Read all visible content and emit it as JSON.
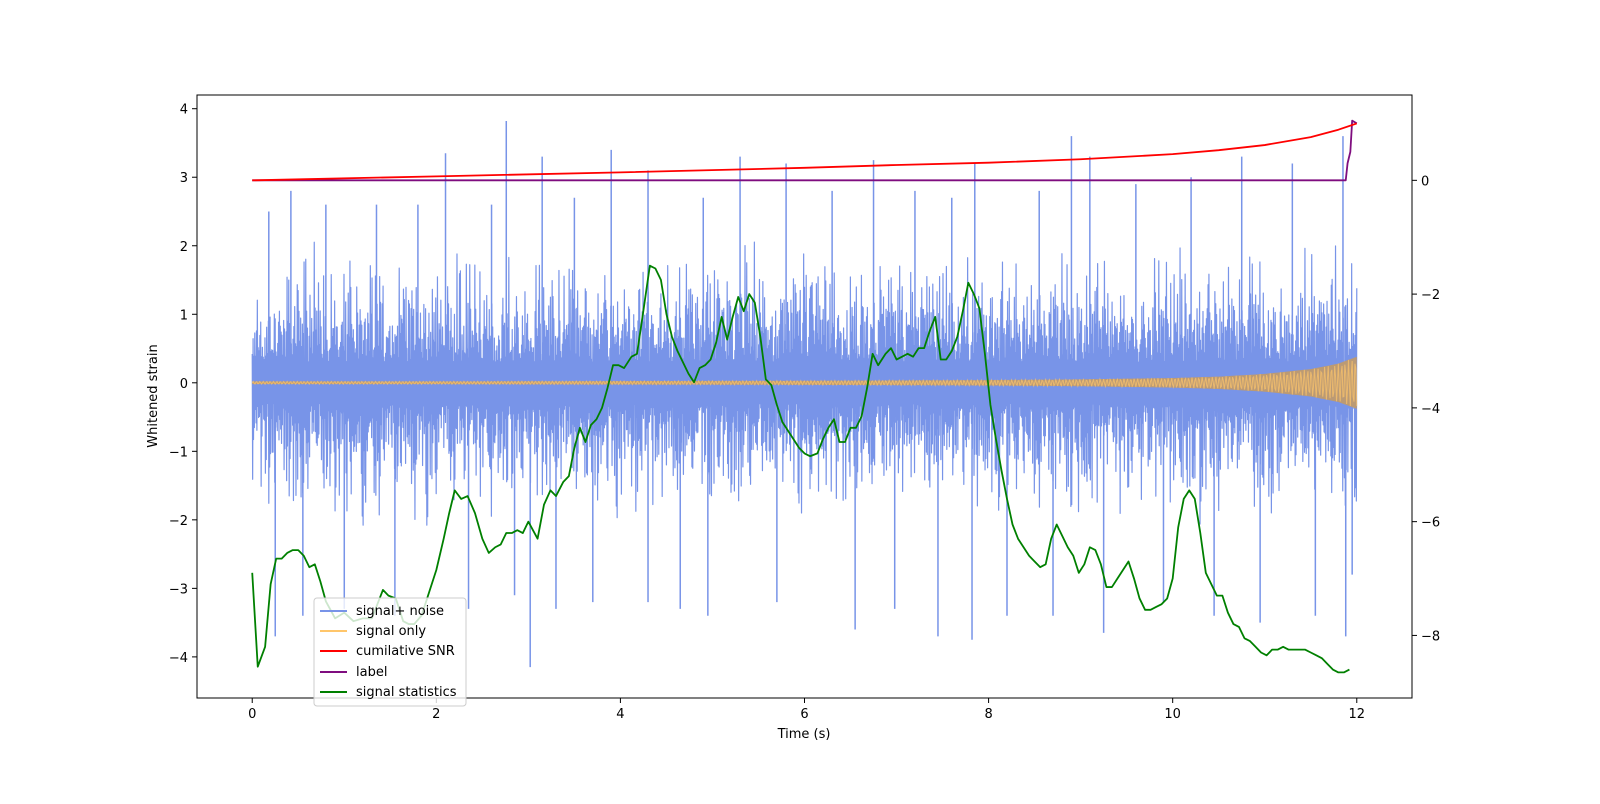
{
  "colors": {
    "signal_noise": "#7894e8",
    "signal_only": "#ffc66b",
    "signal_fill": "#bb9a74",
    "cumulative_snr": "#ff0000",
    "label": "#7f0d7f",
    "signal_statistics": "#008000"
  },
  "chart_data": {
    "type": "line",
    "title": "",
    "xlabel": "Time (s)",
    "ylabel": "Whitened strain",
    "y2label": "",
    "xlim": [
      -0.6,
      12.6
    ],
    "ylim": [
      -4.6,
      4.2
    ],
    "y2lim": [
      -9.1,
      1.5
    ],
    "xticks": [
      0,
      2,
      4,
      6,
      8,
      10,
      12
    ],
    "xtick_labels": [
      "0",
      "2",
      "4",
      "6",
      "8",
      "10",
      "12"
    ],
    "yticks": [
      4,
      3,
      2,
      1,
      0,
      -1,
      -2,
      -3,
      -4
    ],
    "ytick_labels": [
      "4",
      "3",
      "2",
      "1",
      "0",
      "−1",
      "−2",
      "−3",
      "−4"
    ],
    "y2ticks": [
      0,
      -2,
      -4,
      -6,
      -8
    ],
    "y2tick_labels": [
      "0",
      "−2",
      "−4",
      "−6",
      "−8"
    ],
    "legend": {
      "placement": "lower-left",
      "entries": [
        "signal+ noise",
        "signal only",
        "cumilative SNR",
        "label",
        "signal statistics"
      ]
    },
    "series": [
      {
        "name": "signal+ noise",
        "axis": "left",
        "style": "noise",
        "x_range": [
          0,
          12
        ],
        "band": [
          -2.0,
          2.0
        ],
        "spikes": [
          {
            "x": 0.18,
            "y": 2.5
          },
          {
            "x": 0.25,
            "y": -3.7
          },
          {
            "x": 0.42,
            "y": 2.8
          },
          {
            "x": 0.55,
            "y": -3.4
          },
          {
            "x": 0.8,
            "y": 2.6
          },
          {
            "x": 1.0,
            "y": -3.3
          },
          {
            "x": 1.35,
            "y": 2.6
          },
          {
            "x": 1.55,
            "y": -3.4
          },
          {
            "x": 1.8,
            "y": 2.6
          },
          {
            "x": 2.1,
            "y": 3.35
          },
          {
            "x": 2.35,
            "y": -3.3
          },
          {
            "x": 2.6,
            "y": 2.6
          },
          {
            "x": 2.76,
            "y": 3.82
          },
          {
            "x": 2.85,
            "y": -3.1
          },
          {
            "x": 3.02,
            "y": -4.15
          },
          {
            "x": 3.15,
            "y": 3.3
          },
          {
            "x": 3.3,
            "y": -3.3
          },
          {
            "x": 3.5,
            "y": 2.7
          },
          {
            "x": 3.7,
            "y": -3.2
          },
          {
            "x": 3.9,
            "y": 3.4
          },
          {
            "x": 4.3,
            "y": 3.1
          },
          {
            "x": 4.3,
            "y": -3.2
          },
          {
            "x": 4.65,
            "y": -3.3
          },
          {
            "x": 4.9,
            "y": 2.7
          },
          {
            "x": 4.95,
            "y": -3.4
          },
          {
            "x": 5.3,
            "y": 3.3
          },
          {
            "x": 5.7,
            "y": -3.2
          },
          {
            "x": 5.8,
            "y": 3.2
          },
          {
            "x": 6.3,
            "y": 2.8
          },
          {
            "x": 6.55,
            "y": -3.6
          },
          {
            "x": 6.75,
            "y": 3.25
          },
          {
            "x": 6.98,
            "y": -3.3
          },
          {
            "x": 7.2,
            "y": 2.8
          },
          {
            "x": 7.45,
            "y": -3.7
          },
          {
            "x": 7.6,
            "y": 2.7
          },
          {
            "x": 7.82,
            "y": -3.75
          },
          {
            "x": 7.85,
            "y": 3.2
          },
          {
            "x": 8.2,
            "y": -3.4
          },
          {
            "x": 8.55,
            "y": 2.8
          },
          {
            "x": 8.7,
            "y": -3.4
          },
          {
            "x": 8.9,
            "y": 3.6
          },
          {
            "x": 9.1,
            "y": 3.3
          },
          {
            "x": 9.25,
            "y": -3.65
          },
          {
            "x": 9.6,
            "y": 2.9
          },
          {
            "x": 9.9,
            "y": -3.2
          },
          {
            "x": 10.2,
            "y": 3.0
          },
          {
            "x": 10.45,
            "y": -3.4
          },
          {
            "x": 10.75,
            "y": 3.3
          },
          {
            "x": 10.95,
            "y": -3.5
          },
          {
            "x": 11.3,
            "y": 3.2
          },
          {
            "x": 11.55,
            "y": -3.4
          },
          {
            "x": 11.85,
            "y": 3.6
          },
          {
            "x": 11.88,
            "y": -3.7
          },
          {
            "x": 11.95,
            "y": -2.8
          }
        ]
      },
      {
        "name": "signal only",
        "axis": "left",
        "style": "chirp",
        "x": [
          0,
          2,
          4,
          6,
          8,
          9,
          10,
          10.5,
          11,
          11.5,
          11.8,
          12
        ],
        "amplitude": [
          0.02,
          0.02,
          0.025,
          0.03,
          0.04,
          0.05,
          0.07,
          0.09,
          0.13,
          0.2,
          0.28,
          0.38
        ]
      },
      {
        "name": "cumilative SNR",
        "axis": "right",
        "style": "line",
        "x": [
          0,
          2,
          4,
          6,
          7,
          8,
          9,
          10,
          10.5,
          11,
          11.5,
          11.8,
          12
        ],
        "y": [
          0.0,
          0.07,
          0.14,
          0.22,
          0.27,
          0.31,
          0.37,
          0.46,
          0.53,
          0.62,
          0.76,
          0.89,
          1.0
        ]
      },
      {
        "name": "label",
        "axis": "right",
        "style": "line",
        "x": [
          0,
          11.88,
          11.9,
          11.93,
          11.95,
          12
        ],
        "y": [
          0,
          0,
          0.3,
          0.5,
          1.05,
          1.0
        ]
      },
      {
        "name": "signal statistics",
        "axis": "right",
        "style": "line",
        "x": [
          0,
          0.06,
          0.14,
          0.2,
          0.26,
          0.32,
          0.38,
          0.44,
          0.5,
          0.56,
          0.62,
          0.68,
          0.74,
          0.8,
          0.9,
          1.0,
          1.1,
          1.2,
          1.3,
          1.42,
          1.48,
          1.56,
          1.64,
          1.7,
          1.76,
          1.84,
          1.92,
          2.0,
          2.08,
          2.14,
          2.2,
          2.27,
          2.34,
          2.42,
          2.5,
          2.57,
          2.64,
          2.7,
          2.76,
          2.82,
          2.88,
          2.94,
          3.0,
          3.1,
          3.17,
          3.24,
          3.3,
          3.38,
          3.44,
          3.5,
          3.56,
          3.62,
          3.68,
          3.74,
          3.8,
          3.86,
          3.92,
          3.98,
          4.04,
          4.12,
          4.18,
          4.24,
          4.32,
          4.38,
          4.44,
          4.5,
          4.56,
          4.62,
          4.68,
          4.74,
          4.8,
          4.86,
          4.92,
          4.98,
          5.04,
          5.1,
          5.16,
          5.22,
          5.28,
          5.34,
          5.4,
          5.46,
          5.52,
          5.58,
          5.64,
          5.7,
          5.76,
          5.82,
          5.88,
          5.94,
          6.0,
          6.06,
          6.14,
          6.2,
          6.26,
          6.32,
          6.38,
          6.44,
          6.5,
          6.56,
          6.62,
          6.68,
          6.74,
          6.8,
          6.88,
          6.94,
          7.0,
          7.06,
          7.12,
          7.18,
          7.24,
          7.3,
          7.36,
          7.42,
          7.48,
          7.54,
          7.6,
          7.66,
          7.72,
          7.78,
          7.84,
          7.9,
          7.96,
          8.02,
          8.08,
          8.14,
          8.2,
          8.26,
          8.32,
          8.38,
          8.44,
          8.5,
          8.56,
          8.62,
          8.68,
          8.74,
          8.8,
          8.86,
          8.92,
          8.98,
          9.04,
          9.1,
          9.16,
          9.22,
          9.28,
          9.34,
          9.4,
          9.46,
          9.52,
          9.58,
          9.64,
          9.7,
          9.76,
          9.82,
          9.88,
          9.94,
          10.0,
          10.06,
          10.12,
          10.18,
          10.24,
          10.3,
          10.36,
          10.42,
          10.48,
          10.54,
          10.6,
          10.66,
          10.72,
          10.78,
          10.84,
          10.9,
          10.96,
          11.02,
          11.08,
          11.14,
          11.2,
          11.26,
          11.32,
          11.38,
          11.44,
          11.5,
          11.56,
          11.62,
          11.68,
          11.74,
          11.8,
          11.86,
          11.92
        ],
        "y": [
          -6.9,
          -8.55,
          -8.2,
          -7.1,
          -6.65,
          -6.65,
          -6.55,
          -6.5,
          -6.5,
          -6.6,
          -6.8,
          -6.75,
          -7.05,
          -7.4,
          -7.7,
          -7.6,
          -7.75,
          -7.7,
          -7.7,
          -7.2,
          -7.3,
          -7.35,
          -7.75,
          -7.8,
          -7.8,
          -7.65,
          -7.25,
          -6.85,
          -6.3,
          -5.85,
          -5.45,
          -5.6,
          -5.55,
          -5.85,
          -6.3,
          -6.55,
          -6.45,
          -6.4,
          -6.2,
          -6.2,
          -6.15,
          -6.2,
          -6.0,
          -6.3,
          -5.7,
          -5.45,
          -5.55,
          -5.3,
          -5.2,
          -4.7,
          -4.35,
          -4.6,
          -4.3,
          -4.2,
          -4.0,
          -3.65,
          -3.25,
          -3.25,
          -3.3,
          -3.1,
          -3.05,
          -2.4,
          -1.5,
          -1.55,
          -1.75,
          -2.35,
          -2.75,
          -3.0,
          -3.2,
          -3.4,
          -3.55,
          -3.3,
          -3.25,
          -3.15,
          -2.85,
          -2.4,
          -2.8,
          -2.4,
          -2.05,
          -2.3,
          -2.0,
          -2.15,
          -2.75,
          -3.5,
          -3.6,
          -3.95,
          -4.25,
          -4.4,
          -4.55,
          -4.7,
          -4.8,
          -4.85,
          -4.8,
          -4.55,
          -4.35,
          -4.2,
          -4.6,
          -4.6,
          -4.35,
          -4.35,
          -4.15,
          -3.65,
          -3.05,
          -3.25,
          -3.05,
          -2.95,
          -3.15,
          -3.1,
          -3.05,
          -3.1,
          -2.95,
          -2.95,
          -2.65,
          -2.4,
          -3.15,
          -3.15,
          -3.0,
          -2.75,
          -2.3,
          -1.8,
          -2.0,
          -2.25,
          -3.05,
          -3.95,
          -4.55,
          -5.1,
          -5.6,
          -6.05,
          -6.3,
          -6.45,
          -6.6,
          -6.7,
          -6.8,
          -6.75,
          -6.3,
          -6.05,
          -6.25,
          -6.45,
          -6.6,
          -6.9,
          -6.75,
          -6.45,
          -6.5,
          -6.75,
          -7.15,
          -7.15,
          -7.0,
          -6.85,
          -6.7,
          -7.0,
          -7.35,
          -7.55,
          -7.55,
          -7.5,
          -7.45,
          -7.35,
          -7.0,
          -6.1,
          -5.6,
          -5.45,
          -5.6,
          -6.2,
          -6.9,
          -7.1,
          -7.3,
          -7.3,
          -7.6,
          -7.8,
          -7.85,
          -8.05,
          -8.1,
          -8.2,
          -8.3,
          -8.35,
          -8.25,
          -8.25,
          -8.2,
          -8.25,
          -8.25,
          -8.25,
          -8.25,
          -8.3,
          -8.35,
          -8.4,
          -8.5,
          -8.6,
          -8.65,
          -8.65,
          -8.6
        ]
      }
    ]
  }
}
